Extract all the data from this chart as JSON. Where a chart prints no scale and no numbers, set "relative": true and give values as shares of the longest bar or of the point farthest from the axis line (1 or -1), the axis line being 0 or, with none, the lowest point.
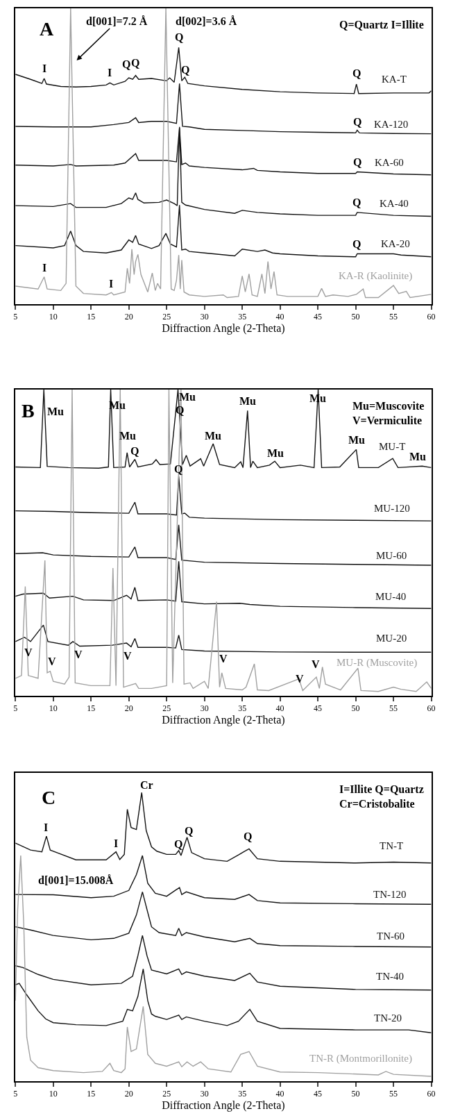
{
  "chart_data": [
    {
      "type": "line",
      "title": "A",
      "xlabel": "Diffraction Angle (2-Theta)",
      "relative": true,
      "xlim": [
        5,
        60
      ],
      "xticks": [
        5,
        10,
        15,
        20,
        25,
        30,
        35,
        40,
        45,
        50,
        55,
        60
      ],
      "series": [
        {
          "name": "KA-T",
          "color": "#111111",
          "x": [
            5,
            7,
            8.5,
            8.8,
            9.1,
            11,
            13,
            15,
            17,
            17.5,
            18,
            19.5,
            20,
            20.5,
            20.9,
            21.3,
            23,
            25,
            25.4,
            26,
            26.6,
            27,
            27.4,
            27.8,
            30,
            35,
            40,
            45,
            49.8,
            50.1,
            50.4,
            55,
            59.7,
            60
          ],
          "values": [
            0.777,
            0.76,
            0.746,
            0.763,
            0.744,
            0.736,
            0.734,
            0.736,
            0.741,
            0.748,
            0.741,
            0.753,
            0.765,
            0.76,
            0.773,
            0.76,
            0.763,
            0.755,
            0.765,
            0.75,
            0.868,
            0.755,
            0.767,
            0.746,
            0.738,
            0.726,
            0.718,
            0.714,
            0.712,
            0.744,
            0.712,
            0.714,
            0.714,
            0.721
          ]
        },
        {
          "name": "KA-120",
          "color": "#111111",
          "x": [
            5,
            10,
            15,
            18,
            20,
            20.9,
            21.3,
            23,
            25,
            26.3,
            26.7,
            27.1,
            28,
            30,
            35,
            40,
            45,
            50,
            50.2,
            50.5,
            55,
            60
          ],
          "values": [
            0.601,
            0.599,
            0.599,
            0.607,
            0.614,
            0.63,
            0.614,
            0.618,
            0.618,
            0.611,
            0.746,
            0.601,
            0.599,
            0.591,
            0.587,
            0.583,
            0.581,
            0.579,
            0.588,
            0.579,
            0.577,
            0.576
          ]
        },
        {
          "name": "KA-60",
          "color": "#111111",
          "x": [
            5,
            10,
            12.3,
            13,
            18,
            19.5,
            20.9,
            21.3,
            23,
            25,
            26.3,
            26.7,
            27,
            27.5,
            28,
            30,
            35,
            36.5,
            37,
            40,
            45,
            50,
            50.2,
            55,
            60
          ],
          "values": [
            0.47,
            0.467,
            0.472,
            0.467,
            0.47,
            0.477,
            0.509,
            0.486,
            0.486,
            0.486,
            0.481,
            0.596,
            0.472,
            0.477,
            0.467,
            0.462,
            0.454,
            0.459,
            0.452,
            0.447,
            0.442,
            0.442,
            0.447,
            0.44,
            0.437
          ]
        },
        {
          "name": "KA-40",
          "color": "#111111",
          "x": [
            5,
            10,
            12.3,
            13,
            17,
            19,
            20,
            20.5,
            20.9,
            21.2,
            22,
            24,
            25,
            26,
            26.4,
            26.7,
            27,
            27.5,
            30,
            34,
            35,
            37,
            40,
            45,
            50,
            50.2,
            55,
            60
          ],
          "values": [
            0.333,
            0.33,
            0.34,
            0.327,
            0.327,
            0.34,
            0.359,
            0.354,
            0.376,
            0.354,
            0.342,
            0.344,
            0.352,
            0.34,
            0.333,
            0.599,
            0.344,
            0.335,
            0.32,
            0.307,
            0.317,
            0.31,
            0.305,
            0.3,
            0.3,
            0.31,
            0.3,
            0.297
          ]
        },
        {
          "name": "KA-20",
          "color": "#111111",
          "x": [
            5,
            10,
            11.5,
            12.3,
            13,
            14,
            17,
            19,
            20,
            20.5,
            20.9,
            21.3,
            23,
            24,
            24.9,
            25.5,
            26.3,
            26.7,
            27,
            27.5,
            28,
            30,
            34,
            35,
            37,
            38,
            39,
            40,
            45,
            50,
            50.2,
            55,
            56,
            60
          ],
          "values": [
            0.198,
            0.19,
            0.198,
            0.247,
            0.198,
            0.178,
            0.173,
            0.183,
            0.217,
            0.209,
            0.232,
            0.203,
            0.188,
            0.198,
            0.239,
            0.203,
            0.193,
            0.335,
            0.183,
            0.186,
            0.178,
            0.173,
            0.163,
            0.186,
            0.178,
            0.183,
            0.173,
            0.17,
            0.163,
            0.16,
            0.17,
            0.17,
            0.166,
            0.16
          ]
        },
        {
          "name": "KA-R (Kaolinite)",
          "color": "#a0a0a0",
          "x": [
            5,
            8,
            8.8,
            9.2,
            11,
            11.7,
            12.3,
            13,
            14,
            17,
            17.7,
            18,
            19.5,
            19.8,
            20.1,
            20.4,
            20.7,
            20.9,
            21.2,
            21.6,
            22.5,
            23.1,
            23.5,
            23.8,
            24.2,
            24.9,
            25.6,
            26,
            26.3,
            26.6,
            26.8,
            27,
            27.3,
            28,
            30,
            32.5,
            33,
            34.5,
            35,
            35.4,
            35.9,
            36.3,
            37,
            37.6,
            38,
            38.4,
            38.8,
            39.2,
            39.6,
            41,
            45,
            45.5,
            46,
            47,
            49,
            50.1,
            51,
            51.3,
            53,
            55,
            55.7,
            56.7,
            57.2,
            60
          ],
          "values": [
            0.061,
            0.051,
            0.092,
            0.051,
            0.046,
            0.07,
            1.0,
            0.061,
            0.036,
            0.031,
            0.039,
            0.031,
            0.041,
            0.121,
            0.07,
            0.186,
            0.1,
            0.144,
            0.168,
            0.1,
            0.041,
            0.105,
            0.046,
            0.07,
            0.051,
            1.0,
            0.051,
            0.046,
            0.08,
            0.166,
            0.051,
            0.149,
            0.041,
            0.031,
            0.026,
            0.031,
            0.022,
            0.026,
            0.095,
            0.041,
            0.102,
            0.031,
            0.026,
            0.102,
            0.036,
            0.144,
            0.051,
            0.11,
            0.031,
            0.026,
            0.026,
            0.053,
            0.026,
            0.031,
            0.026,
            0.033,
            0.051,
            0.022,
            0.022,
            0.063,
            0.036,
            0.043,
            0.022,
            0.033
          ]
        }
      ],
      "annotations": [
        "d[001]=7.2 Å",
        "d[002]=3.6 Å",
        "Q=Quartz I=Illite",
        "I",
        "I",
        "Q",
        "Q",
        "Q",
        "Q",
        "Q",
        "Q",
        "Q",
        "Q",
        "Q",
        "I",
        "I"
      ]
    },
    {
      "type": "line",
      "title": "B",
      "xlabel": "Diffraction Angle (2-Theta)",
      "relative": true,
      "xlim": [
        5,
        60
      ],
      "xticks": [
        5,
        10,
        15,
        20,
        25,
        30,
        35,
        40,
        45,
        50,
        55,
        60
      ],
      "series": [
        {
          "name": "MU-T",
          "color": "#111111",
          "x": [
            5,
            8.3,
            8.76,
            9.2,
            12,
            16,
            17.3,
            17.6,
            18,
            19.5,
            19.77,
            20.1,
            20.8,
            21.2,
            23.1,
            23.6,
            24.1,
            25.5,
            26.5,
            27.1,
            27.6,
            28.1,
            29.5,
            29.9,
            31.15,
            32,
            34,
            34.8,
            35.1,
            35.7,
            36.1,
            36.4,
            37,
            38.6,
            39.3,
            40,
            42.7,
            44.5,
            45.04,
            45.5,
            47.9,
            50.08,
            50.4,
            53,
            54.9,
            55.6,
            58.8,
            60
          ],
          "values": [
            0.747,
            0.745,
            1.0,
            0.749,
            0.745,
            0.743,
            0.747,
            1.0,
            0.745,
            0.747,
            0.794,
            0.747,
            0.772,
            0.747,
            0.757,
            0.771,
            0.755,
            0.757,
            1.0,
            0.755,
            0.785,
            0.75,
            0.774,
            0.75,
            0.823,
            0.755,
            0.745,
            0.764,
            0.745,
            0.931,
            0.745,
            0.766,
            0.745,
            0.753,
            0.766,
            0.745,
            0.753,
            0.745,
            1.0,
            0.745,
            0.747,
            0.804,
            0.745,
            0.745,
            0.775,
            0.745,
            0.75,
            0.745
          ]
        },
        {
          "name": "MU-120",
          "color": "#111111",
          "x": [
            5,
            10,
            15,
            20,
            20.8,
            21.2,
            25,
            26.3,
            26.6,
            27,
            27.4,
            28,
            30,
            40,
            50,
            60
          ],
          "values": [
            0.604,
            0.602,
            0.598,
            0.596,
            0.632,
            0.594,
            0.594,
            0.59,
            0.717,
            0.594,
            0.596,
            0.583,
            0.58,
            0.575,
            0.573,
            0.571
          ]
        },
        {
          "name": "MU-60",
          "color": "#111111",
          "x": [
            5,
            8.6,
            10,
            15,
            20,
            20.8,
            21.2,
            25,
            26.2,
            26.6,
            27,
            30,
            40,
            50,
            60
          ],
          "values": [
            0.464,
            0.467,
            0.46,
            0.455,
            0.453,
            0.486,
            0.451,
            0.451,
            0.445,
            0.558,
            0.443,
            0.436,
            0.432,
            0.429,
            0.426
          ]
        },
        {
          "name": "MU-40",
          "color": "#111111",
          "x": [
            5,
            6,
            8.7,
            9.5,
            12.6,
            14,
            18,
            19.7,
            20.3,
            20.8,
            21.2,
            25,
            26.2,
            26.6,
            27,
            30,
            34.7,
            36,
            40,
            50,
            60
          ],
          "values": [
            0.325,
            0.332,
            0.335,
            0.319,
            0.325,
            0.313,
            0.311,
            0.328,
            0.316,
            0.354,
            0.311,
            0.313,
            0.309,
            0.439,
            0.307,
            0.3,
            0.302,
            0.298,
            0.292,
            0.288,
            0.285
          ]
        },
        {
          "name": "MU-20",
          "color": "#111111",
          "x": [
            5,
            6.2,
            7,
            8.7,
            9.3,
            12,
            12.6,
            13.5,
            17.8,
            19.7,
            20.3,
            20.8,
            21.2,
            25,
            26.2,
            26.6,
            27,
            30,
            40,
            50,
            60
          ],
          "values": [
            0.177,
            0.191,
            0.177,
            0.231,
            0.177,
            0.165,
            0.177,
            0.162,
            0.165,
            0.172,
            0.16,
            0.187,
            0.158,
            0.158,
            0.156,
            0.198,
            0.151,
            0.146,
            0.143,
            0.142,
            0.142
          ]
        },
        {
          "name": "MU-R (Muscovite)",
          "color": "#a0a0a0",
          "x": [
            5,
            5.8,
            6.3,
            6.7,
            8,
            8.9,
            9.2,
            9.6,
            10,
            11.5,
            12.1,
            12.5,
            12.9,
            15,
            17.5,
            17.9,
            18.3,
            18.86,
            19.3,
            20.9,
            21.3,
            23,
            25,
            25.3,
            25.8,
            26.9,
            27.3,
            28.1,
            28.5,
            30,
            30.5,
            31.6,
            32,
            32.3,
            32.8,
            35,
            35.5,
            36.6,
            37,
            38.5,
            42.5,
            43,
            44.8,
            45.2,
            45.6,
            46,
            48,
            50.3,
            50.7,
            53,
            55,
            56,
            58,
            59.4,
            60
          ],
          "values": [
            0.057,
            0.066,
            0.357,
            0.066,
            0.057,
            0.442,
            0.075,
            0.08,
            0.047,
            0.038,
            0.061,
            1.0,
            0.042,
            0.033,
            0.033,
            0.417,
            0.033,
            1.0,
            0.028,
            0.04,
            0.024,
            0.024,
            0.033,
            1.0,
            0.042,
            1.0,
            0.038,
            0.042,
            0.024,
            0.047,
            0.024,
            0.307,
            0.028,
            0.075,
            0.024,
            0.019,
            0.028,
            0.104,
            0.019,
            0.017,
            0.055,
            0.017,
            0.061,
            0.024,
            0.094,
            0.038,
            0.019,
            0.09,
            0.017,
            0.014,
            0.028,
            0.021,
            0.014,
            0.045,
            0.024
          ]
        }
      ],
      "annotations": [
        "Mu=Muscovite\nV=Vermiculite",
        "Mu",
        "Mu",
        "Mu",
        "Q",
        "Mu",
        "Q",
        "Mu",
        "Mu",
        "Mu",
        "Mu",
        "Mu",
        "Mu",
        "Q",
        "V",
        "V",
        "V",
        "V",
        "V",
        "V",
        "V"
      ]
    },
    {
      "type": "line",
      "title": "C",
      "xlabel": "Diffraction Angle (2-Theta)",
      "relative": true,
      "xlim": [
        5,
        60
      ],
      "xticks": [
        5,
        10,
        15,
        20,
        25,
        30,
        35,
        40,
        45,
        50,
        55,
        60
      ],
      "series": [
        {
          "name": "TN-T",
          "color": "#111111",
          "x": [
            5,
            7,
            8.5,
            9.1,
            9.6,
            10.5,
            13,
            17,
            18.3,
            18.8,
            19.4,
            19.8,
            20.3,
            21,
            21.7,
            22.3,
            23,
            23.7,
            25,
            26.2,
            26.6,
            26.9,
            27.7,
            28.3,
            30,
            33,
            34.5,
            35.2,
            35.9,
            37,
            40,
            45,
            50,
            55,
            60
          ],
          "values": [
            0.825,
            0.801,
            0.795,
            0.849,
            0.801,
            0.792,
            0.767,
            0.767,
            0.795,
            0.768,
            0.786,
            0.942,
            0.879,
            0.872,
            1.0,
            0.868,
            0.812,
            0.797,
            0.786,
            0.786,
            0.799,
            0.782,
            0.845,
            0.792,
            0.771,
            0.762,
            0.784,
            0.795,
            0.805,
            0.771,
            0.762,
            0.759,
            0.756,
            0.759,
            0.756
          ]
        },
        {
          "name": "TN-120",
          "color": "#111111",
          "x": [
            5,
            10,
            15,
            18,
            20,
            21,
            21.8,
            22.5,
            23.5,
            25,
            26.7,
            27,
            27.6,
            30,
            34,
            35.9,
            37,
            40,
            50,
            60
          ],
          "values": [
            0.647,
            0.646,
            0.636,
            0.641,
            0.661,
            0.716,
            0.782,
            0.686,
            0.651,
            0.641,
            0.671,
            0.647,
            0.656,
            0.636,
            0.63,
            0.647,
            0.626,
            0.618,
            0.615,
            0.613
          ]
        },
        {
          "name": "TN-60",
          "color": "#111111",
          "x": [
            5,
            7,
            10,
            15,
            18,
            20,
            21,
            21.8,
            22.4,
            23,
            24,
            26.2,
            26.6,
            27,
            27.6,
            30,
            34,
            36,
            37,
            40,
            50,
            60
          ],
          "values": [
            0.535,
            0.524,
            0.505,
            0.49,
            0.495,
            0.513,
            0.576,
            0.656,
            0.595,
            0.535,
            0.515,
            0.505,
            0.53,
            0.505,
            0.515,
            0.5,
            0.483,
            0.495,
            0.477,
            0.47,
            0.467,
            0.465
          ]
        },
        {
          "name": "TN-40",
          "color": "#111111",
          "x": [
            5,
            6,
            8,
            10,
            15,
            19,
            20.5,
            21.2,
            21.8,
            22.4,
            23,
            25,
            26.6,
            27,
            27.6,
            30,
            34,
            36,
            37,
            40,
            50,
            60
          ],
          "values": [
            0.4,
            0.394,
            0.37,
            0.353,
            0.334,
            0.339,
            0.364,
            0.435,
            0.505,
            0.435,
            0.385,
            0.372,
            0.389,
            0.37,
            0.379,
            0.364,
            0.349,
            0.374,
            0.344,
            0.329,
            0.318,
            0.316
          ]
        },
        {
          "name": "TN-20",
          "color": "#111111",
          "x": [
            5,
            5.5,
            6.5,
            8,
            9,
            10,
            13,
            17,
            19.2,
            19.8,
            20.5,
            21.2,
            21.9,
            22.5,
            23,
            23.5,
            25,
            26.6,
            27,
            27.6,
            30,
            33,
            34.5,
            36,
            37,
            40,
            50,
            57,
            60
          ],
          "values": [
            0.334,
            0.339,
            0.299,
            0.244,
            0.216,
            0.203,
            0.196,
            0.193,
            0.208,
            0.249,
            0.244,
            0.294,
            0.389,
            0.279,
            0.233,
            0.225,
            0.214,
            0.229,
            0.214,
            0.223,
            0.208,
            0.193,
            0.208,
            0.249,
            0.208,
            0.183,
            0.178,
            0.178,
            0.168
          ]
        },
        {
          "name": "TN-R (Montmorillonite)",
          "color": "#a0a0a0",
          "x": [
            5,
            5.3,
            5.7,
            6.1,
            6.5,
            7,
            8,
            10,
            14,
            16.5,
            17.5,
            18,
            19,
            19.5,
            19.8,
            20.3,
            21,
            21.9,
            22.5,
            23.5,
            25,
            26.6,
            27,
            27.7,
            28.5,
            29.5,
            30.5,
            33.5,
            34.8,
            35.9,
            37,
            40,
            45,
            53,
            54,
            55,
            60
          ],
          "values": [
            0.279,
            0.595,
            0.782,
            0.545,
            0.153,
            0.073,
            0.047,
            0.037,
            0.03,
            0.034,
            0.062,
            0.037,
            0.03,
            0.043,
            0.188,
            0.103,
            0.112,
            0.259,
            0.093,
            0.062,
            0.052,
            0.067,
            0.05,
            0.067,
            0.052,
            0.067,
            0.043,
            0.032,
            0.093,
            0.103,
            0.052,
            0.032,
            0.03,
            0.022,
            0.034,
            0.024,
            0.017
          ]
        }
      ],
      "annotations": [
        "I=Illite Q=Quartz\nCr=Cristobalite",
        "I",
        "I",
        "Cr",
        "Q",
        "Q",
        "Q",
        "d[001]=15.008Å"
      ]
    }
  ]
}
